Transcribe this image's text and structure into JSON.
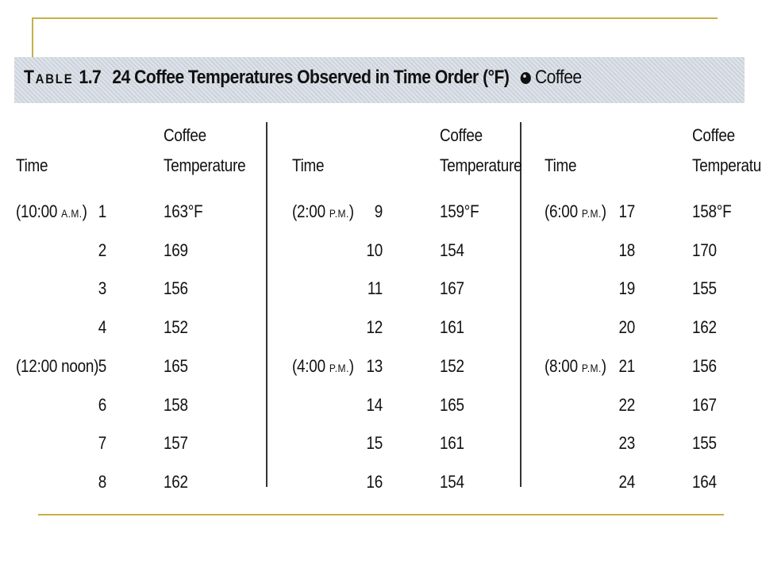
{
  "title": {
    "table_label_first": "T",
    "table_label_rest": "ABLE",
    "table_number": "1.7",
    "text": "24 Coffee Temperatures Observed in Time Order (°F)",
    "icon": "coffee-data-icon",
    "dataset_name": "Coffee"
  },
  "headers": {
    "time": "Time",
    "temp_line1": "Coffee",
    "temp_line2": "Temperature"
  },
  "groups": [
    {
      "rows": [
        {
          "time_main": "(10:00 ",
          "time_sc": "A.M.",
          "time_close": ")",
          "index": "1",
          "temp": "163°F"
        },
        {
          "time_main": "",
          "time_sc": "",
          "time_close": "",
          "index": "2",
          "temp": "169"
        },
        {
          "time_main": "",
          "time_sc": "",
          "time_close": "",
          "index": "3",
          "temp": "156"
        },
        {
          "time_main": "",
          "time_sc": "",
          "time_close": "",
          "index": "4",
          "temp": "152"
        },
        {
          "time_main": "(12:00 noon)",
          "time_sc": "",
          "time_close": "",
          "index": "5",
          "temp": "165"
        },
        {
          "time_main": "",
          "time_sc": "",
          "time_close": "",
          "index": "6",
          "temp": "158"
        },
        {
          "time_main": "",
          "time_sc": "",
          "time_close": "",
          "index": "7",
          "temp": "157"
        },
        {
          "time_main": "",
          "time_sc": "",
          "time_close": "",
          "index": "8",
          "temp": "162"
        }
      ]
    },
    {
      "rows": [
        {
          "time_main": "(2:00 ",
          "time_sc": "P.M.",
          "time_close": ")",
          "index": "9",
          "temp": "159°F"
        },
        {
          "time_main": "",
          "time_sc": "",
          "time_close": "",
          "index": "10",
          "temp": "154"
        },
        {
          "time_main": "",
          "time_sc": "",
          "time_close": "",
          "index": "11",
          "temp": "167"
        },
        {
          "time_main": "",
          "time_sc": "",
          "time_close": "",
          "index": "12",
          "temp": "161"
        },
        {
          "time_main": "(4:00 ",
          "time_sc": "P.M.",
          "time_close": ")",
          "index": "13",
          "temp": "152"
        },
        {
          "time_main": "",
          "time_sc": "",
          "time_close": "",
          "index": "14",
          "temp": "165"
        },
        {
          "time_main": "",
          "time_sc": "",
          "time_close": "",
          "index": "15",
          "temp": "161"
        },
        {
          "time_main": "",
          "time_sc": "",
          "time_close": "",
          "index": "16",
          "temp": "154"
        }
      ]
    },
    {
      "rows": [
        {
          "time_main": "(6:00 ",
          "time_sc": "P.M.",
          "time_close": ")",
          "index": "17",
          "temp": "158°F"
        },
        {
          "time_main": "",
          "time_sc": "",
          "time_close": "",
          "index": "18",
          "temp": "170"
        },
        {
          "time_main": "",
          "time_sc": "",
          "time_close": "",
          "index": "19",
          "temp": "155"
        },
        {
          "time_main": "",
          "time_sc": "",
          "time_close": "",
          "index": "20",
          "temp": "162"
        },
        {
          "time_main": "(8:00 ",
          "time_sc": "P.M.",
          "time_close": ")",
          "index": "21",
          "temp": "156"
        },
        {
          "time_main": "",
          "time_sc": "",
          "time_close": "",
          "index": "22",
          "temp": "167"
        },
        {
          "time_main": "",
          "time_sc": "",
          "time_close": "",
          "index": "23",
          "temp": "155"
        },
        {
          "time_main": "",
          "time_sc": "",
          "time_close": "",
          "index": "24",
          "temp": "164"
        }
      ]
    }
  ],
  "colors": {
    "accent_rule": "#c8b04a",
    "title_band": "#d8dde5",
    "text": "#111111"
  }
}
